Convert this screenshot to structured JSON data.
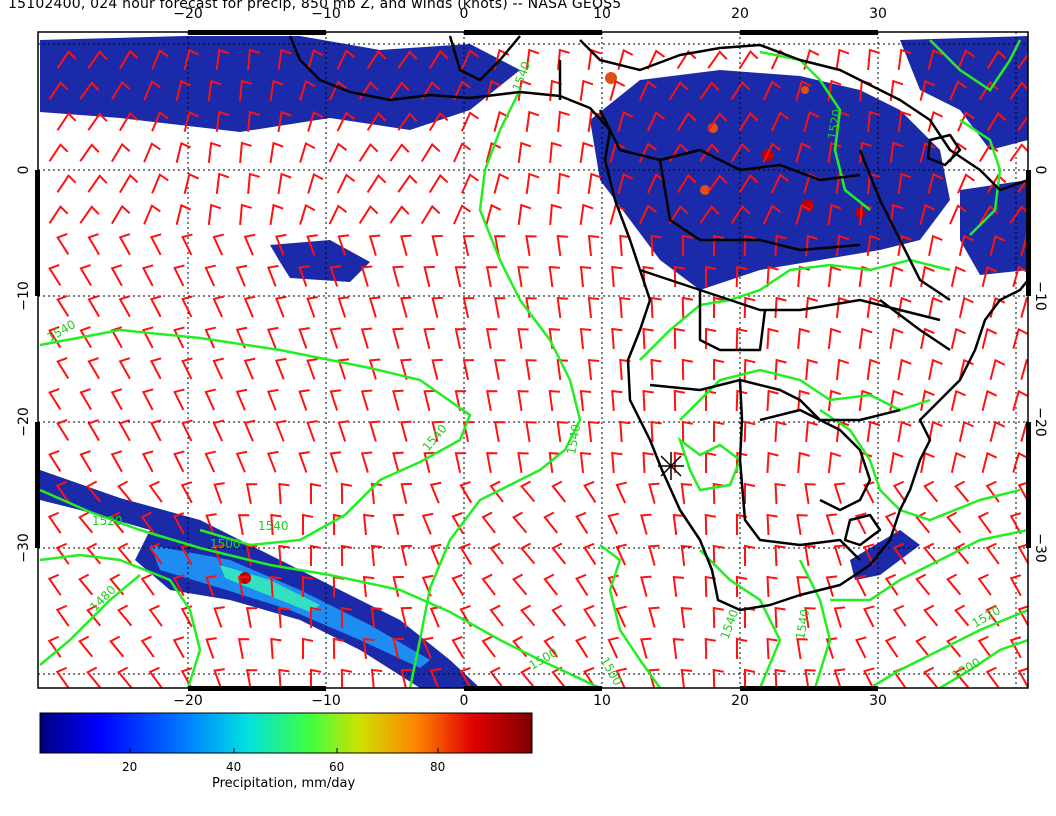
{
  "title": "15102400, 024 hour forecast for precip, 850 mb Z, and winds (knots) -- NASA GEOS5",
  "map": {
    "region": "Southern Africa and South Atlantic",
    "lon_ticks": [
      {
        "label": "−20",
        "lon": -20
      },
      {
        "label": "−10",
        "lon": -10
      },
      {
        "label": "0",
        "lon": 0
      },
      {
        "label": "10",
        "lon": 10
      },
      {
        "label": "20",
        "lon": 20
      },
      {
        "label": "30",
        "lon": 30
      }
    ],
    "lat_ticks": [
      {
        "label": "0",
        "lat": 0
      },
      {
        "label": "−10",
        "lat": -10
      },
      {
        "label": "−20",
        "lat": -20
      },
      {
        "label": "−30",
        "lat": -30
      }
    ],
    "contour_labels": [
      "1540",
      "1540",
      "1540",
      "1540",
      "1520",
      "1500",
      "1480",
      "1500",
      "1540",
      "1520",
      "1500",
      "1540",
      "1500",
      "1520",
      "1540"
    ],
    "colors": {
      "contour": "#22ee22",
      "wind_barb": "#ff1111",
      "coastline": "#000000",
      "grid": "#000000"
    }
  },
  "colorbar": {
    "title": "Precipitation, mm/day",
    "ticks": [
      "20",
      "40",
      "60",
      "80"
    ],
    "colors": [
      "#00007f",
      "#0000ff",
      "#0080ff",
      "#00e0e0",
      "#40ff40",
      "#d0e000",
      "#ff8000",
      "#e00000",
      "#7f0000"
    ]
  }
}
